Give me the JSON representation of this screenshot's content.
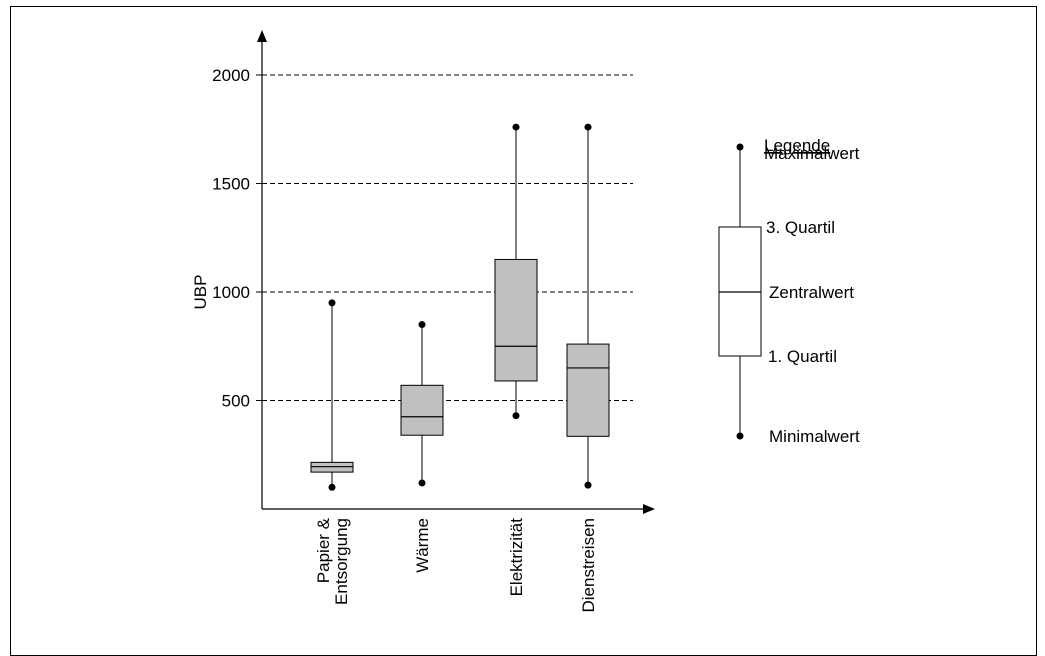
{
  "chart_data": {
    "type": "boxplot",
    "ylabel": "UBP",
    "ylim": [
      0,
      2000
    ],
    "yticks": [
      500,
      1000,
      1500,
      2000
    ],
    "grid": "dashed horizontal",
    "categories": [
      "Papier &\nEntsorgung",
      "Wärme",
      "Elektrizität",
      "Dienstreisen"
    ],
    "boxes": [
      {
        "min": 100,
        "q1": 170,
        "median": 195,
        "q3": 215,
        "max": 950
      },
      {
        "min": 120,
        "q1": 340,
        "median": 425,
        "q3": 570,
        "max": 850
      },
      {
        "min": 430,
        "q1": 590,
        "median": 750,
        "q3": 1150,
        "max": 1760
      },
      {
        "min": 110,
        "q1": 335,
        "median": 650,
        "q3": 760,
        "max": 1760
      }
    ],
    "box_color": "#c0c0c0",
    "legend": {
      "title": "Legende",
      "max": "Maximalwert",
      "q3": "3. Quartil",
      "median": "Zentralwert",
      "q1": "1. Quartil",
      "min": "Minimalwert"
    }
  }
}
